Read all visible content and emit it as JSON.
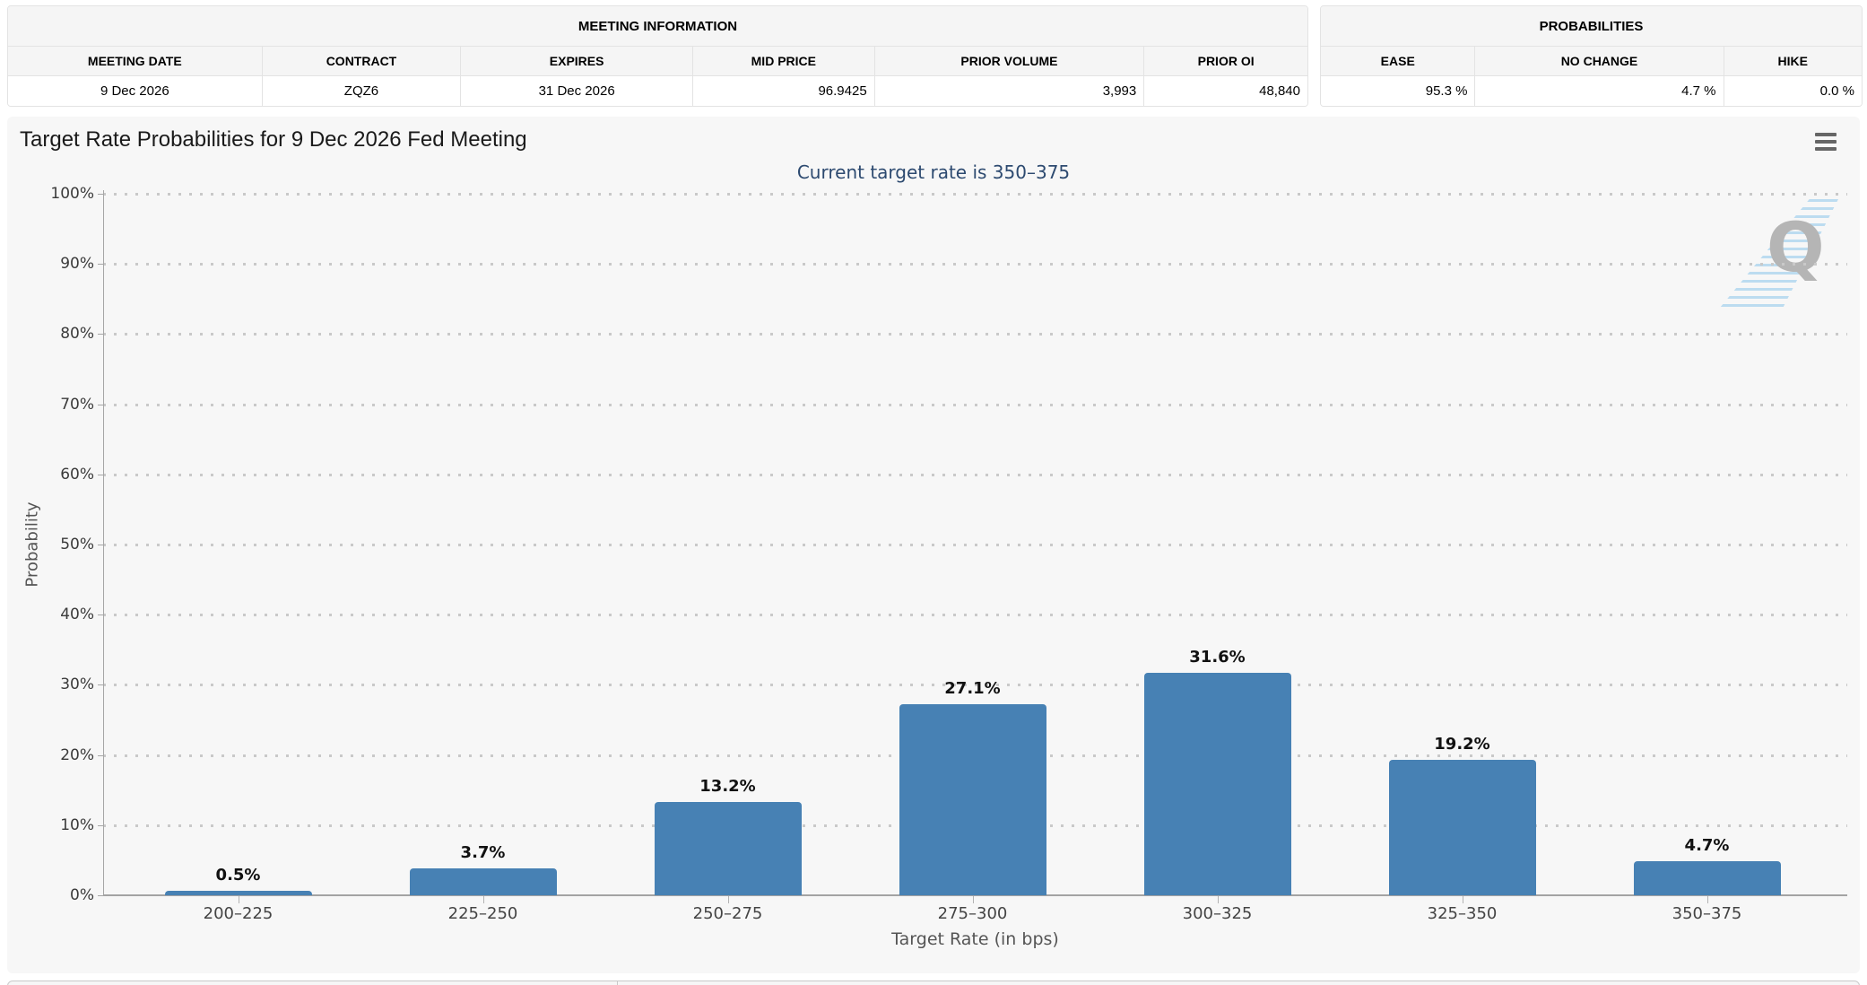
{
  "meeting_information": {
    "title": "MEETING INFORMATION",
    "columns": [
      "MEETING DATE",
      "CONTRACT",
      "EXPIRES",
      "MID PRICE",
      "PRIOR VOLUME",
      "PRIOR OI"
    ],
    "row": {
      "meeting_date": "9 Dec 2026",
      "contract": "ZQZ6",
      "expires": "31 Dec 2026",
      "mid_price": "96.9425",
      "prior_volume": "3,993",
      "prior_oi": "48,840"
    }
  },
  "probabilities": {
    "title": "PROBABILITIES",
    "columns": [
      "EASE",
      "NO CHANGE",
      "HIKE"
    ],
    "row": {
      "ease": "95.3 %",
      "no_change": "4.7 %",
      "hike": "0.0 %"
    }
  },
  "chart_data": {
    "type": "bar",
    "title": "Target Rate Probabilities for 9 Dec 2026 Fed Meeting",
    "subtitle": "Current target rate is 350–375",
    "categories": [
      "200–225",
      "225–250",
      "250–275",
      "275–300",
      "300–325",
      "325–350",
      "350–375"
    ],
    "values": [
      0.5,
      3.7,
      13.2,
      27.1,
      31.6,
      19.2,
      4.7
    ],
    "data_labels": [
      "0.5%",
      "3.7%",
      "13.2%",
      "27.1%",
      "31.6%",
      "19.2%",
      "4.7%"
    ],
    "xlabel": "Target Rate (in bps)",
    "ylabel": "Probability",
    "ylim": [
      0,
      100
    ],
    "ytick_step": 10,
    "ytick_suffix": "%",
    "grid": "dotted horizontal",
    "legend": "none",
    "bar_color": "#4781b4",
    "watermark": "Q"
  },
  "icons": {
    "menu": "hamburger-icon"
  }
}
